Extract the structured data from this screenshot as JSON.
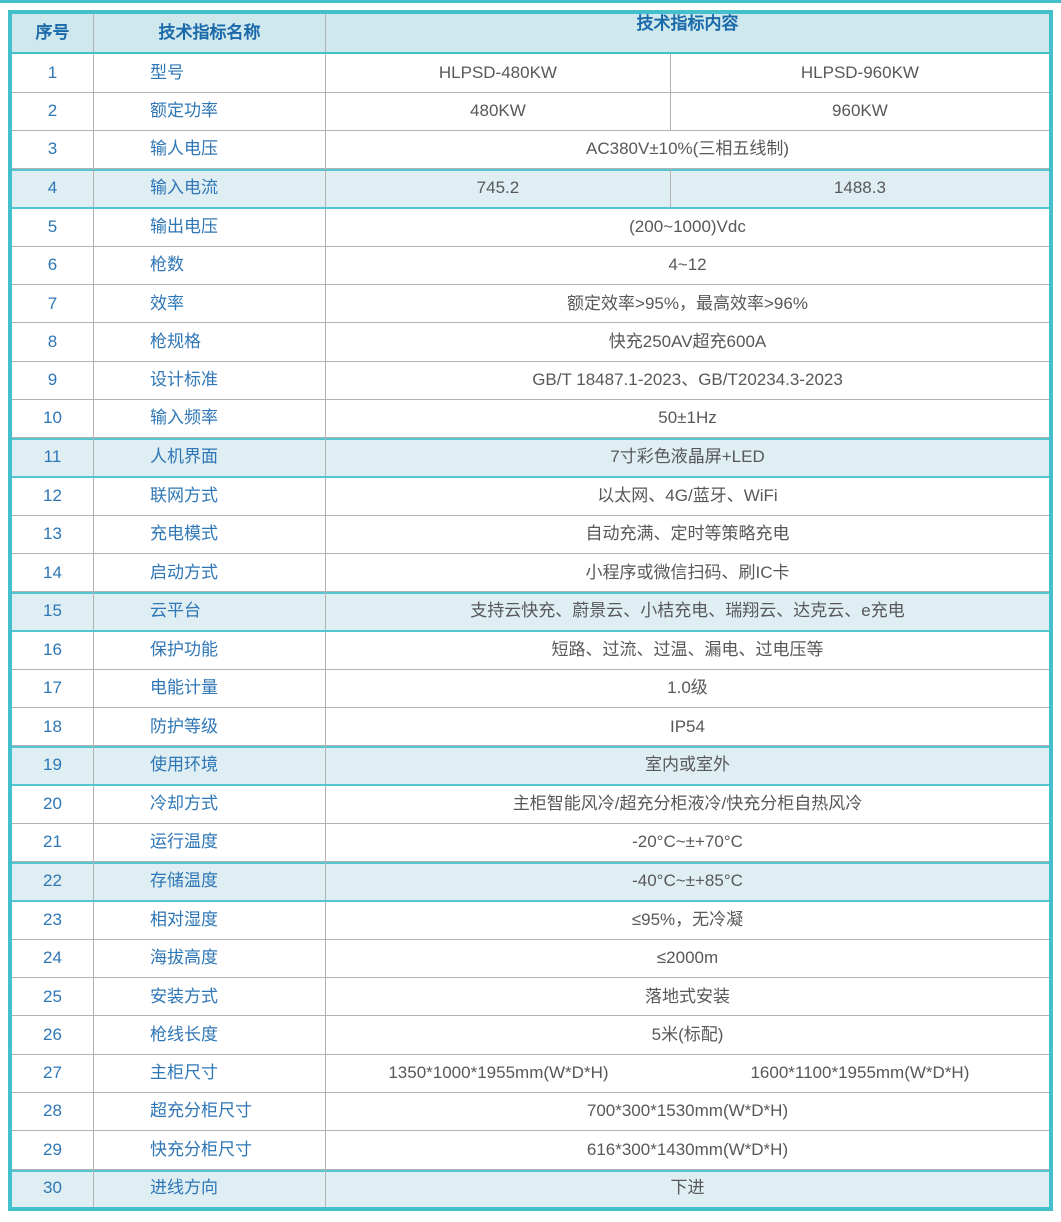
{
  "colors": {
    "table_border_teal": "#43c0cc",
    "highlight_border_teal": "#53c6d2",
    "header_background": "#cee8ee",
    "highlight_row_background": "#deeef3",
    "grid_line_gray": "#b2b2b2",
    "header_text_blue": "#1a69a9",
    "label_text_blue": "#2e76b6",
    "content_text_gray": "#58585a"
  },
  "table": {
    "headers": [
      "序号",
      "技术指标名称",
      "技术指标内容"
    ],
    "rows": [
      {
        "no": "1",
        "name": "型号",
        "values": [
          "HLPSD-480KW",
          "HLPSD-960KW"
        ],
        "divider": true,
        "highlight": false
      },
      {
        "no": "2",
        "name": "额定功率",
        "values": [
          "480KW",
          "960KW"
        ],
        "divider": true,
        "highlight": false
      },
      {
        "no": "3",
        "name": "输人电压",
        "values": [
          "AC380V±10%(三相五线制)"
        ],
        "divider": false,
        "highlight": false
      },
      {
        "no": "4",
        "name": "输入电流",
        "values": [
          "745.2",
          "1488.3"
        ],
        "divider": true,
        "highlight": true
      },
      {
        "no": "5",
        "name": "输出电压",
        "values": [
          "(200~1000)Vdc"
        ],
        "divider": false,
        "highlight": false
      },
      {
        "no": "6",
        "name": "枪数",
        "values": [
          "4~12"
        ],
        "divider": false,
        "highlight": false
      },
      {
        "no": "7",
        "name": "效率",
        "values": [
          "额定效率>95%，最高效率>96%"
        ],
        "divider": false,
        "highlight": false
      },
      {
        "no": "8",
        "name": "枪规格",
        "values": [
          "快充250AV超充600A"
        ],
        "divider": false,
        "highlight": false
      },
      {
        "no": "9",
        "name": "设计标准",
        "values": [
          "GB/T 18487.1-2023、GB/T20234.3-2023"
        ],
        "divider": false,
        "highlight": false
      },
      {
        "no": "10",
        "name": "输入频率",
        "values": [
          "50±1Hz"
        ],
        "divider": false,
        "highlight": false
      },
      {
        "no": "11",
        "name": "人机界面",
        "values": [
          "7寸彩色液晶屏+LED"
        ],
        "divider": false,
        "highlight": true
      },
      {
        "no": "12",
        "name": "联网方式",
        "values": [
          "以太网、4G/蓝牙、WiFi"
        ],
        "divider": false,
        "highlight": false
      },
      {
        "no": "13",
        "name": "充电模式",
        "values": [
          "自动充满、定时等策略充电"
        ],
        "divider": false,
        "highlight": false
      },
      {
        "no": "14",
        "name": "启动方式",
        "values": [
          "小程序或微信扫码、刷IC卡"
        ],
        "divider": false,
        "highlight": false
      },
      {
        "no": "15",
        "name": "云平台",
        "values": [
          "支持云快充、蔚景云、小桔充电、瑞翔云、达克云、e充电"
        ],
        "divider": false,
        "highlight": true
      },
      {
        "no": "16",
        "name": "保护功能",
        "values": [
          "短路、过流、过温、漏电、过电压等"
        ],
        "divider": false,
        "highlight": false
      },
      {
        "no": "17",
        "name": "电能计量",
        "values": [
          "1.0级"
        ],
        "divider": false,
        "highlight": false
      },
      {
        "no": "18",
        "name": "防护等级",
        "values": [
          "IP54"
        ],
        "divider": false,
        "highlight": false
      },
      {
        "no": "19",
        "name": "使用环境",
        "values": [
          "室内或室外"
        ],
        "divider": false,
        "highlight": true
      },
      {
        "no": "20",
        "name": "冷却方式",
        "values": [
          "主柜智能风冷/超充分柜液冷/快充分柜自热风冷"
        ],
        "divider": false,
        "highlight": false
      },
      {
        "no": "21",
        "name": "运行温度",
        "values": [
          "-20°C~±+70°C"
        ],
        "divider": false,
        "highlight": false
      },
      {
        "no": "22",
        "name": "存储温度",
        "values": [
          "-40°C~±+85°C"
        ],
        "divider": false,
        "highlight": true
      },
      {
        "no": "23",
        "name": "相对湿度",
        "values": [
          "≤95%，无冷凝"
        ],
        "divider": false,
        "highlight": false
      },
      {
        "no": "24",
        "name": "海拔高度",
        "values": [
          "≤2000m"
        ],
        "divider": false,
        "highlight": false
      },
      {
        "no": "25",
        "name": "安装方式",
        "values": [
          "落地式安装"
        ],
        "divider": false,
        "highlight": false
      },
      {
        "no": "26",
        "name": "枪线长度",
        "values": [
          "5米(标配)"
        ],
        "divider": false,
        "highlight": false
      },
      {
        "no": "27",
        "name": "主柜尺寸",
        "values": [
          "1350*1000*1955mm(W*D*H)",
          "1600*1100*1955mm(W*D*H)"
        ],
        "divider": false,
        "highlight": false
      },
      {
        "no": "28",
        "name": "超充分柜尺寸",
        "values": [
          "700*300*1530mm(W*D*H)"
        ],
        "divider": false,
        "highlight": false
      },
      {
        "no": "29",
        "name": "快充分柜尺寸",
        "values": [
          "616*300*1430mm(W*D*H)"
        ],
        "divider": false,
        "highlight": false
      },
      {
        "no": "30",
        "name": "进线方向",
        "values": [
          "下进"
        ],
        "divider": false,
        "highlight": true
      }
    ]
  }
}
